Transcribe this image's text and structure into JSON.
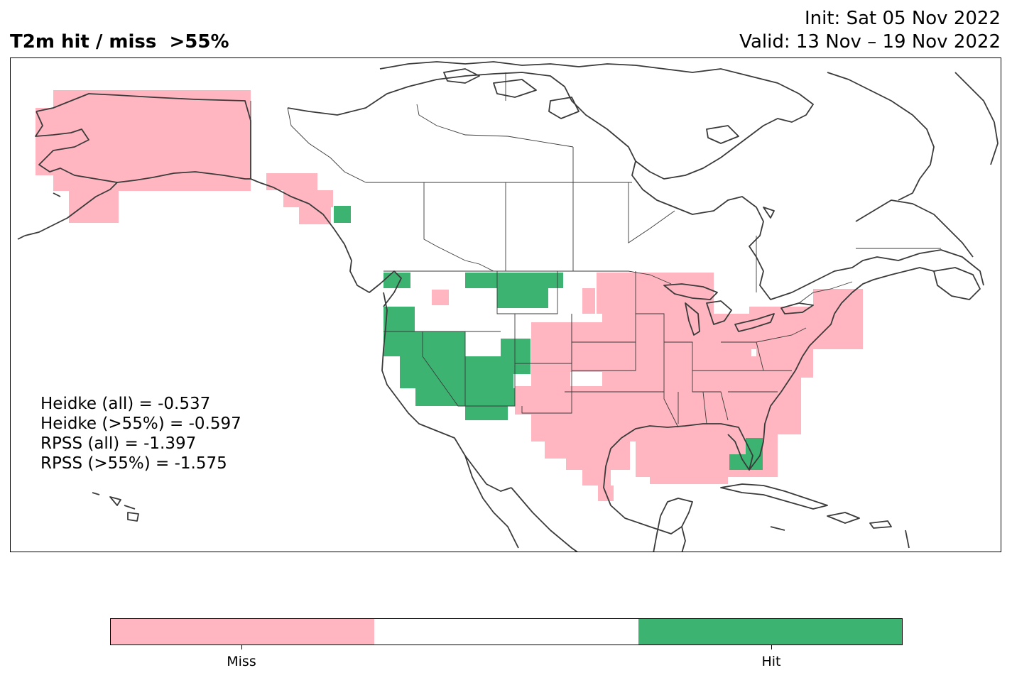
{
  "header": {
    "title": "T2m hit / miss  >55%",
    "init": "Init: Sat 05 Nov 2022",
    "valid": "Valid: 13 Nov – 19 Nov 2022"
  },
  "scores": {
    "heidke_all": "Heidke (all) = -0.537",
    "heidke_55": "Heidke (>55%) = -0.597",
    "rpss_all": "RPSS (all) = -1.397",
    "rpss_55": "RPSS (>55%) = -1.575"
  },
  "colors": {
    "miss": "#ffb6c1",
    "neutral": "#ffffff",
    "hit": "#3cb371",
    "coast": "#3a3a3a"
  },
  "legend": {
    "miss_label": "Miss",
    "hit_label": "Hit"
  },
  "chart_data": {
    "type": "heatmap",
    "categories": [
      "Miss",
      "Hit"
    ],
    "regions": [
      {
        "name": "Alaska",
        "category": "Miss"
      },
      {
        "name": "Alaska panhandle",
        "category": "Miss"
      },
      {
        "name": "Pacific Northwest coast",
        "category": "Hit"
      },
      {
        "name": "California / Nevada",
        "category": "Hit"
      },
      {
        "name": "Arizona / Utah",
        "category": "Hit"
      },
      {
        "name": "Montana",
        "category": "Hit"
      },
      {
        "name": "Great Plains",
        "category": "Miss"
      },
      {
        "name": "Texas",
        "category": "Miss"
      },
      {
        "name": "Midwest / Great Lakes",
        "category": "Miss"
      },
      {
        "name": "Southeast",
        "category": "Miss"
      },
      {
        "name": "Northeast",
        "category": "Miss"
      },
      {
        "name": "South Florida",
        "category": "Hit"
      }
    ]
  }
}
